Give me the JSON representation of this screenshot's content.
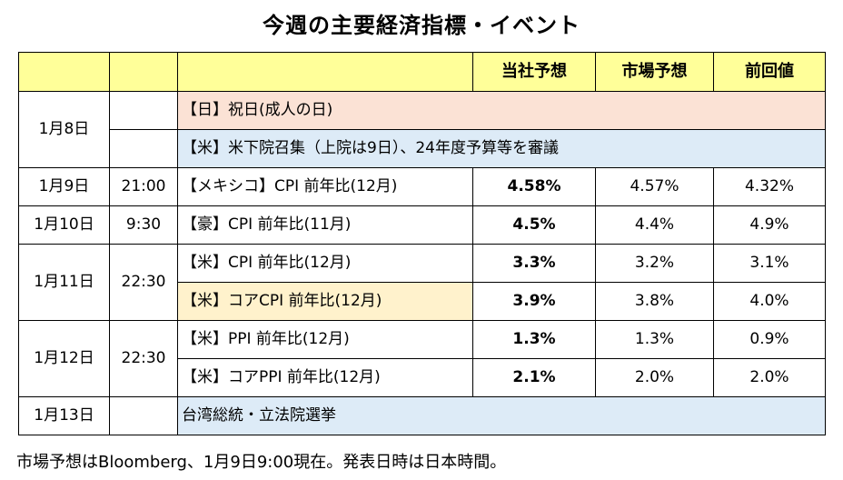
{
  "title": "今週の主要経済指標・イベント",
  "header": {
    "col_date": "",
    "col_time": "",
    "col_event": "",
    "col_company_forecast": "当社予想",
    "col_market_forecast": "市場予想",
    "col_previous": "前回値"
  },
  "rows": [
    {
      "date": "1月8日",
      "time": "",
      "event": "【日】祝日(成人の日)",
      "company": "",
      "market": "",
      "previous": ""
    },
    {
      "date": "",
      "time": "",
      "event": "【米】米下院召集（上院は9日）、24年度予算等を審議",
      "company": "",
      "market": "",
      "previous": ""
    },
    {
      "date": "1月9日",
      "time": "21:00",
      "event": "【メキシコ】CPI 前年比(12月)",
      "company": "4.58%",
      "market": "4.57%",
      "previous": "4.32%"
    },
    {
      "date": "1月10日",
      "time": "9:30",
      "event": "【豪】CPI 前年比(11月)",
      "company": "4.5%",
      "market": "4.4%",
      "previous": "4.9%"
    },
    {
      "date": "1月11日",
      "time": "22:30",
      "event": "【米】CPI 前年比(12月)",
      "company": "3.3%",
      "market": "3.2%",
      "previous": "3.1%"
    },
    {
      "date": "",
      "time": "",
      "event": "【米】コアCPI 前年比(12月)",
      "company": "3.9%",
      "market": "3.8%",
      "previous": "4.0%"
    },
    {
      "date": "1月12日",
      "time": "22:30",
      "event": "【米】PPI 前年比(12月)",
      "company": "1.3%",
      "market": "1.3%",
      "previous": "0.9%"
    },
    {
      "date": "",
      "time": "",
      "event": "【米】コアPPI 前年比(12月)",
      "company": "2.1%",
      "market": "2.0%",
      "previous": "2.0%"
    },
    {
      "date": "1月13日",
      "time": "",
      "event": "台湾総統・立法院選挙",
      "company": "",
      "market": "",
      "previous": ""
    }
  ],
  "footnote": "市場予想はBloomberg、1月9日9:00現在。発表日時は日本時間。",
  "colors": {
    "header_bg": "#ffff99",
    "pink_bg": "#fbe2d5",
    "blue_bg": "#ddebf7",
    "cream_bg": "#fff2cc"
  }
}
